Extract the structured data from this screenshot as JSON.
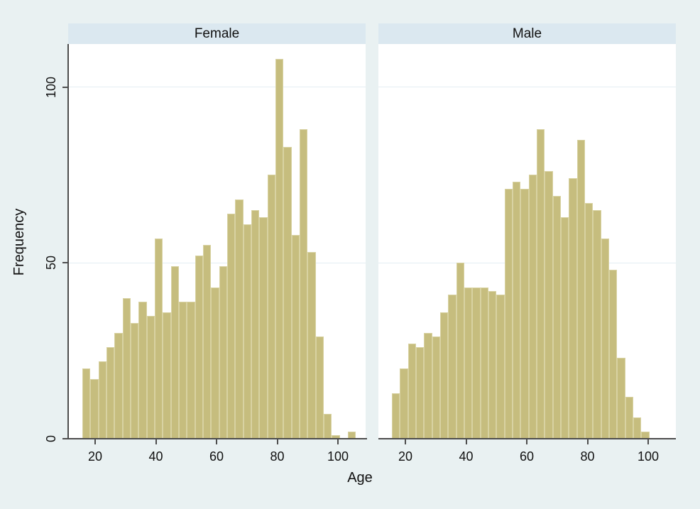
{
  "figure": {
    "background_color": "#e9f1f2",
    "header_color": "#dbe8f0",
    "bar_fill_color": "#c6bd7e",
    "bar_outline_color": "#d8d2a2",
    "gridline_color": "#e3edf3",
    "axis_color": "#4d4d4d"
  },
  "panels": [
    {
      "title": "Female"
    },
    {
      "title": "Male"
    }
  ],
  "y_axis": {
    "title": "Frequency",
    "tick_labels": [
      "0",
      "50",
      "100"
    ]
  },
  "x_axis": {
    "title": "Age",
    "tick_labels": [
      "20",
      "40",
      "60",
      "80",
      "100"
    ]
  },
  "chart_data": {
    "type": "bar",
    "subtype": "histogram-faceted",
    "facets": [
      "Female",
      "Male"
    ],
    "xlabel": "Age",
    "ylabel": "Frequency",
    "x_ticks": [
      20,
      40,
      60,
      80,
      100
    ],
    "y_ticks": [
      0,
      50,
      100
    ],
    "ylim": [
      0,
      112
    ],
    "xlim": [
      13,
      110
    ],
    "first_bin_start_age": 15.9,
    "bin_width_years": 2.65,
    "grid": "horizontal-only",
    "legend": "none",
    "series": [
      {
        "name": "Female",
        "values": [
          20,
          17,
          22,
          26,
          30,
          40,
          33,
          39,
          35,
          57,
          36,
          49,
          39,
          39,
          52,
          55,
          43,
          49,
          64,
          68,
          61,
          65,
          63,
          75,
          108,
          83,
          58,
          88,
          53,
          29,
          7,
          1,
          0,
          2
        ]
      },
      {
        "name": "Male",
        "values": [
          13,
          20,
          27,
          26,
          30,
          29,
          36,
          41,
          50,
          43,
          43,
          43,
          42,
          41,
          71,
          73,
          71,
          75,
          88,
          76,
          69,
          63,
          74,
          85,
          67,
          65,
          57,
          48,
          23,
          12,
          6,
          2
        ]
      }
    ]
  }
}
